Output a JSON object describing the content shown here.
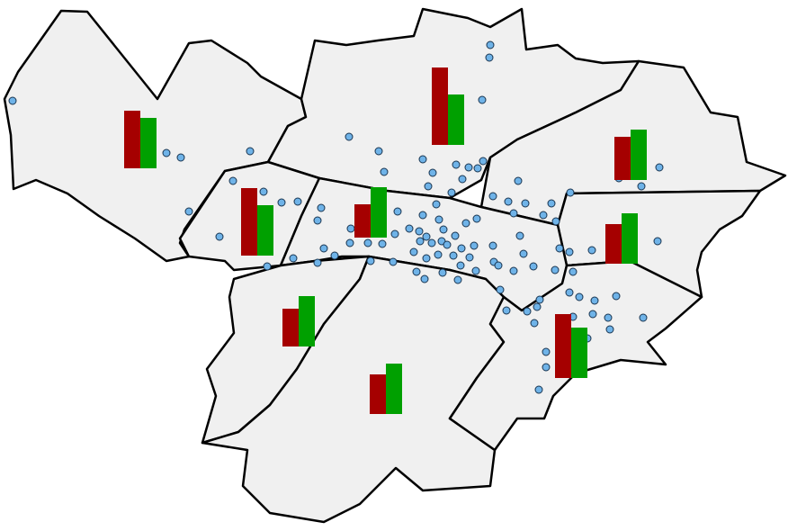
{
  "map": {
    "bar_colors": [
      "#a50000",
      "#00a000"
    ],
    "districts": [
      {
        "values": [
          64,
          56
        ]
      },
      {
        "values": [
          86,
          56
        ]
      },
      {
        "values": [
          48,
          56
        ]
      },
      {
        "values": [
          75,
          56
        ]
      },
      {
        "values": [
          37,
          56
        ]
      },
      {
        "values": [
          44,
          56
        ]
      },
      {
        "values": [
          42,
          56
        ]
      },
      {
        "values": [
          44,
          56
        ]
      },
      {
        "values": [
          71,
          56
        ]
      }
    ]
  }
}
